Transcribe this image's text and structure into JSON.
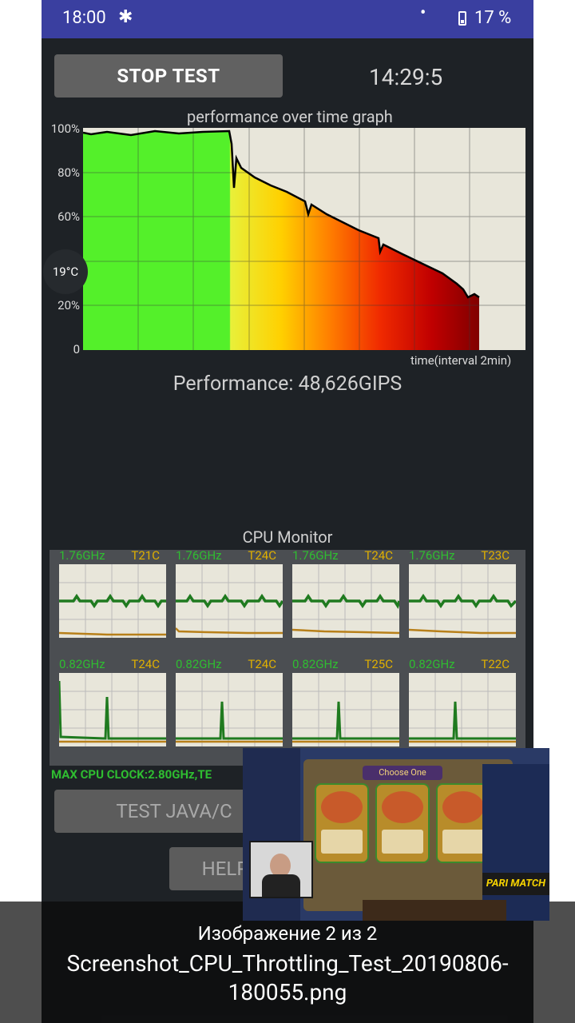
{
  "status_bar": {
    "time": "18:00",
    "battery": "17 %"
  },
  "toolbar": {
    "stop_label": "STOP TEST",
    "timer": "14:29:5"
  },
  "graph": {
    "title": "performance over time graph",
    "y_ticks": [
      "100%",
      "80%",
      "60%",
      "40%",
      "20%",
      "0"
    ],
    "x_label": "time(interval 2min)"
  },
  "temp_badge": "19°C",
  "performance_text": "Performance: 48,626GIPS",
  "cpu_monitor": {
    "title": "CPU Monitor",
    "cores": [
      {
        "freq": "1.76GHz",
        "temp": "T21C"
      },
      {
        "freq": "1.76GHz",
        "temp": "T24C"
      },
      {
        "freq": "1.76GHz",
        "temp": "T24C"
      },
      {
        "freq": "1.76GHz",
        "temp": "T23C"
      },
      {
        "freq": "0.82GHz",
        "temp": "T24C"
      },
      {
        "freq": "0.82GHz",
        "temp": "T24C"
      },
      {
        "freq": "0.82GHz",
        "temp": "T25C"
      },
      {
        "freq": "0.82GHz",
        "temp": "T22C"
      }
    ],
    "max_clock": "MAX CPU CLOCK:2.80GHz,TE"
  },
  "buttons": {
    "test_java": "TEST JAVA/C",
    "help": "HELP/"
  },
  "viewer": {
    "count": "Изображение 2 из 2",
    "filename": "Screenshot_CPU_Throttling_Test_20190806-180055.png"
  },
  "pip": {
    "choose": "Choose One",
    "sponsor": "PARI MATCH"
  }
}
